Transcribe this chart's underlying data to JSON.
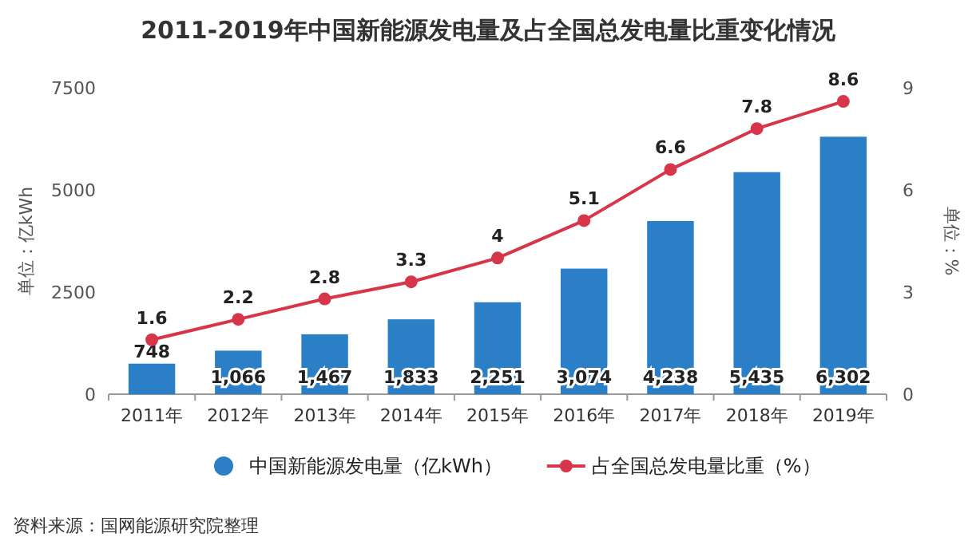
{
  "chart_data": {
    "type": "bar",
    "title": "2011-2019年中国新能源发电量及占全国总发电量比重变化情况",
    "categories": [
      "2011年",
      "2012年",
      "2013年",
      "2014年",
      "2015年",
      "2016年",
      "2017年",
      "2018年",
      "2019年"
    ],
    "series": [
      {
        "name": "中国新能源发电量（亿kWh）",
        "color": "#2a7fc6",
        "values": [
          748,
          1066,
          1467,
          1833,
          2251,
          3074,
          4238,
          5435,
          6302
        ],
        "value_labels": [
          "748",
          "1,066",
          "1,467",
          "1,833",
          "2,251",
          "3,074",
          "4,238",
          "5,435",
          "6,302"
        ]
      },
      {
        "name": "占全国总发电量比重（%）",
        "type": "line",
        "axis": "y2",
        "color": "#d7364a",
        "marker": "circle",
        "values": [
          1.6,
          2.2,
          2.8,
          3.3,
          4,
          5.1,
          6.6,
          7.8,
          8.6
        ],
        "value_labels": [
          "1.6",
          "2.2",
          "2.8",
          "3.3",
          "4",
          "5.1",
          "6.6",
          "7.8",
          "8.6"
        ]
      }
    ],
    "ylabel": "单位：亿kWh",
    "y2label": "单位：%",
    "ylim": [
      0,
      7500
    ],
    "yticks": [
      0,
      2500,
      5000,
      7500
    ],
    "y2lim": [
      0,
      9
    ],
    "y2ticks": [
      0,
      3,
      6,
      9
    ],
    "grid": false,
    "legend": "bottom",
    "annotations": [
      "资料来源：国网能源研究院整理"
    ]
  }
}
